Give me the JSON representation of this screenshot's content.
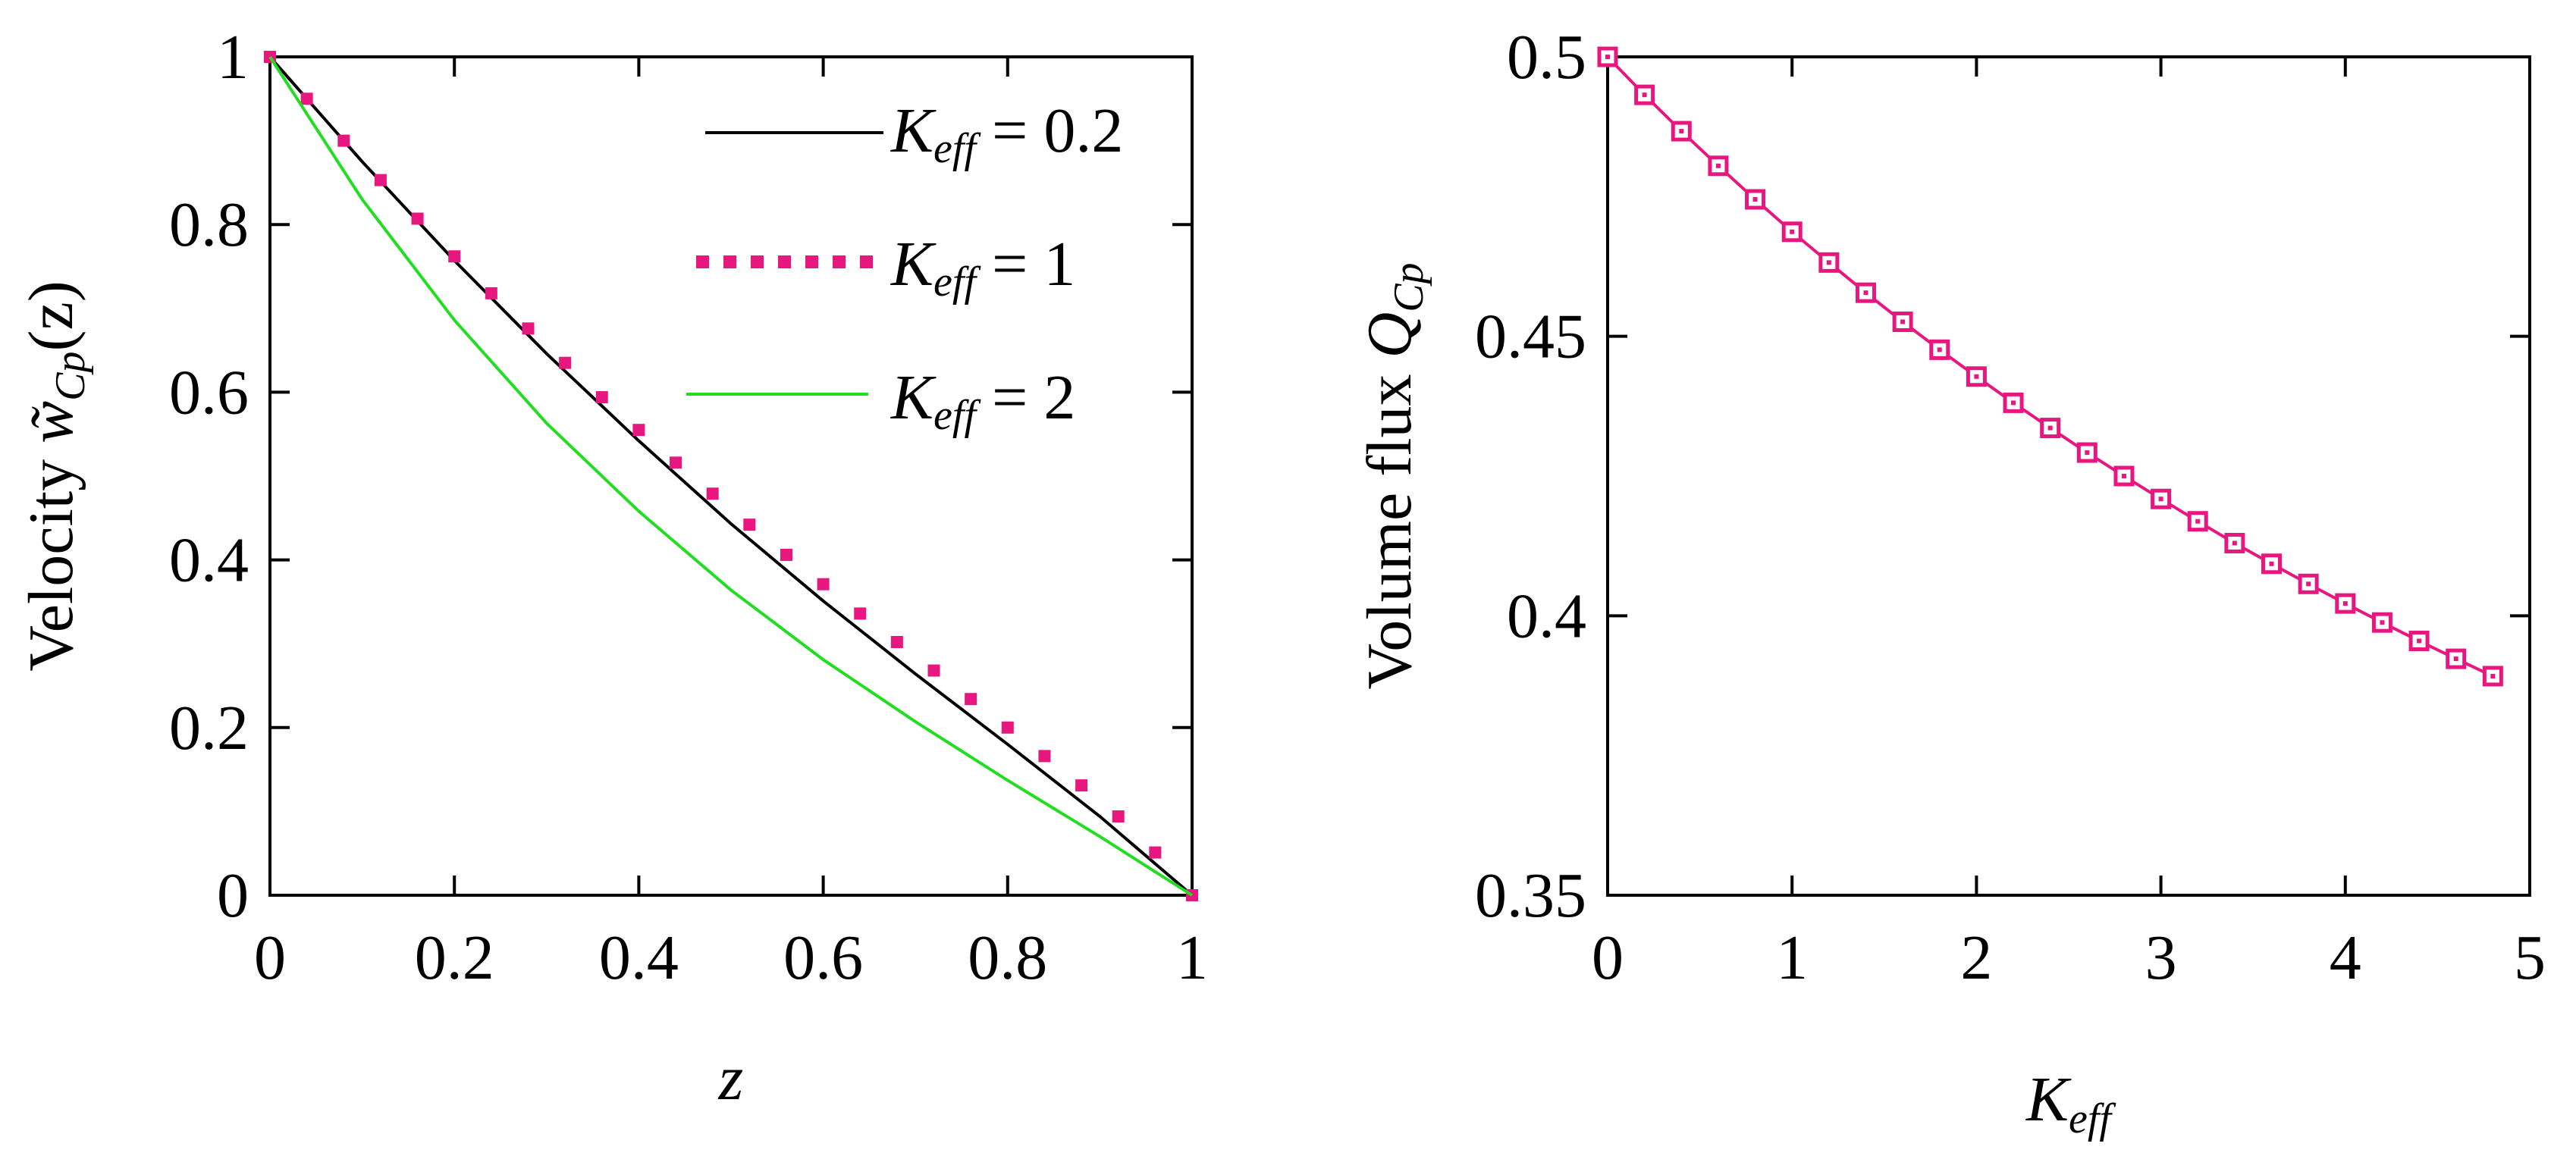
{
  "colors": {
    "black": "#000000",
    "magenta": "#e8177f",
    "green": "#22dd22"
  },
  "chart_data": [
    {
      "id": "left",
      "type": "line",
      "title": "",
      "xlabel": "z",
      "ylabel": {
        "prefix": "Velocity ",
        "symbol": "w̃",
        "subscript": "Cp",
        "suffix": "(z)"
      },
      "xlim": [
        0,
        1
      ],
      "ylim": [
        0,
        1
      ],
      "xticks": [
        "0",
        "0.2",
        "0.4",
        "0.6",
        "0.8",
        "1"
      ],
      "yticks": [
        "0",
        "0.2",
        "0.4",
        "0.6",
        "0.8",
        "1"
      ],
      "legend": "top-right",
      "series": [
        {
          "name": "Keff = 0.2",
          "legend_symbol": "K",
          "legend_sub": "eff",
          "legend_value": " = 0.2",
          "style": "solid",
          "color": "#000000",
          "x": [
            0,
            0.1,
            0.2,
            0.3,
            0.4,
            0.5,
            0.6,
            0.7,
            0.8,
            0.9,
            1
          ],
          "y": [
            1,
            0.875,
            0.757,
            0.646,
            0.542,
            0.443,
            0.351,
            0.264,
            0.18,
            0.094,
            0
          ]
        },
        {
          "name": "Keff = 1",
          "legend_symbol": "K",
          "legend_sub": "eff",
          "legend_value": " = 1",
          "style": "dots",
          "color": "#e8177f",
          "x": [
            0,
            0.04,
            0.08,
            0.12,
            0.16,
            0.2,
            0.24,
            0.28,
            0.32,
            0.36,
            0.4,
            0.44,
            0.48,
            0.52,
            0.56,
            0.6,
            0.64,
            0.68,
            0.72,
            0.76,
            0.8,
            0.84,
            0.88,
            0.92,
            0.96,
            1
          ],
          "y": [
            1,
            0.95,
            0.9,
            0.853,
            0.807,
            0.762,
            0.718,
            0.676,
            0.635,
            0.594,
            0.555,
            0.516,
            0.479,
            0.442,
            0.406,
            0.371,
            0.336,
            0.302,
            0.268,
            0.234,
            0.2,
            0.166,
            0.131,
            0.094,
            0.051,
            0
          ]
        },
        {
          "name": "Keff = 2",
          "legend_symbol": "K",
          "legend_sub": "eff",
          "legend_value": " = 2",
          "style": "solid",
          "color": "#22dd22",
          "x": [
            0,
            0.1,
            0.2,
            0.3,
            0.4,
            0.5,
            0.6,
            0.7,
            0.8,
            0.9,
            1
          ],
          "y": [
            1,
            0.83,
            0.686,
            0.563,
            0.458,
            0.364,
            0.281,
            0.207,
            0.137,
            0.07,
            0
          ]
        }
      ]
    },
    {
      "id": "right",
      "type": "line",
      "title": "",
      "xlabel": {
        "symbol": "K",
        "subscript": "eff"
      },
      "ylabel": {
        "prefix": "Volume flux ",
        "symbol": "Q",
        "subscript": "Cp"
      },
      "xlim": [
        0,
        5
      ],
      "ylim": [
        0.35,
        0.5
      ],
      "xticks": [
        "0",
        "1",
        "2",
        "3",
        "4",
        "5"
      ],
      "yticks": [
        "0.35",
        "0.4",
        "0.45",
        "0.5"
      ],
      "legend": "none",
      "series": [
        {
          "name": "QCp",
          "style": "line-square-markers",
          "color": "#e8177f",
          "x": [
            0,
            0.2,
            0.4,
            0.6,
            0.8,
            1.0,
            1.2,
            1.4,
            1.6,
            1.8,
            2.0,
            2.2,
            2.4,
            2.6,
            2.8,
            3.0,
            3.2,
            3.4,
            3.6,
            3.8,
            4.0,
            4.2,
            4.4,
            4.6,
            4.8
          ],
          "y": [
            0.5,
            0.4932,
            0.4867,
            0.4805,
            0.4745,
            0.4687,
            0.4632,
            0.4578,
            0.4526,
            0.4476,
            0.4428,
            0.4381,
            0.4336,
            0.4292,
            0.425,
            0.4209,
            0.4169,
            0.413,
            0.4093,
            0.4057,
            0.4022,
            0.3988,
            0.3955,
            0.3923,
            0.3892
          ]
        }
      ]
    }
  ]
}
